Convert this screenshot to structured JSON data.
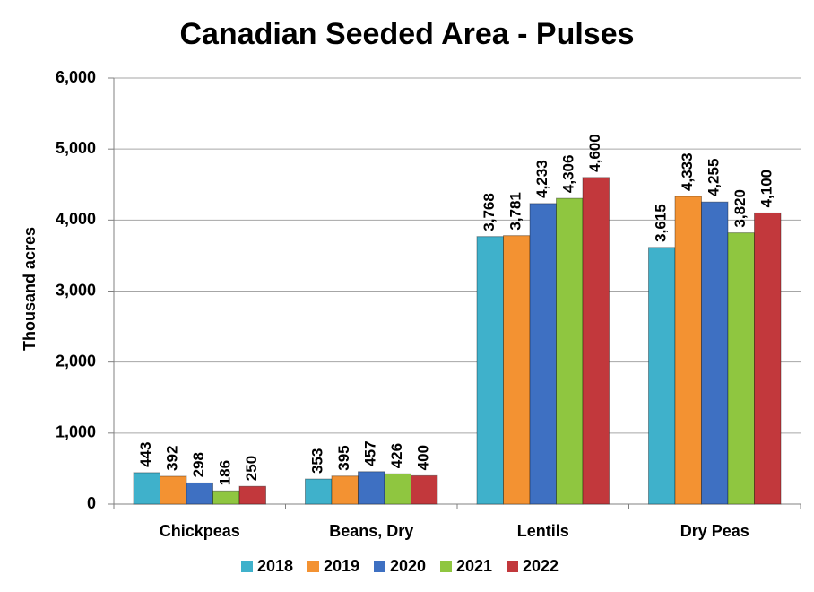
{
  "chart_data": {
    "type": "bar",
    "title": "Canadian Seeded Area - Pulses",
    "y_label": "Thousand acres",
    "categories": [
      "Chickpeas",
      "Beans, Dry",
      "Lentils",
      "Dry Peas"
    ],
    "series": [
      {
        "name": "2018",
        "color": "#3fb1cb",
        "values": [
          443,
          353,
          3768,
          3615
        ],
        "value_labels": [
          "443",
          "353",
          "3,768",
          "3,615"
        ]
      },
      {
        "name": "2019",
        "color": "#f39232",
        "values": [
          392,
          395,
          3781,
          4333
        ],
        "value_labels": [
          "392",
          "395",
          "3,781",
          "4,333"
        ]
      },
      {
        "name": "2020",
        "color": "#3e70c2",
        "values": [
          298,
          457,
          4233,
          4255
        ],
        "value_labels": [
          "298",
          "457",
          "4,233",
          "4,255"
        ]
      },
      {
        "name": "2021",
        "color": "#8fc640",
        "values": [
          186,
          426,
          4306,
          3820
        ],
        "value_labels": [
          "186",
          "426",
          "4,306",
          "3,820"
        ]
      },
      {
        "name": "2022",
        "color": "#c2383c",
        "values": [
          250,
          400,
          4600,
          4100
        ],
        "value_labels": [
          "250",
          "400",
          "4,600",
          "4,100"
        ]
      }
    ],
    "ylim": [
      0,
      6000
    ],
    "yticks": [
      0,
      {
        "value": 1000,
        "label": "1,000"
      },
      {
        "value": 2000,
        "label": "2,000"
      },
      {
        "value": 3000,
        "label": "3,000"
      },
      {
        "value": 4000,
        "label": "4,000"
      },
      {
        "value": 5000,
        "label": "5,000"
      },
      {
        "value": 6000,
        "label": "6,000"
      }
    ],
    "grid": true,
    "legend": "bottom"
  }
}
